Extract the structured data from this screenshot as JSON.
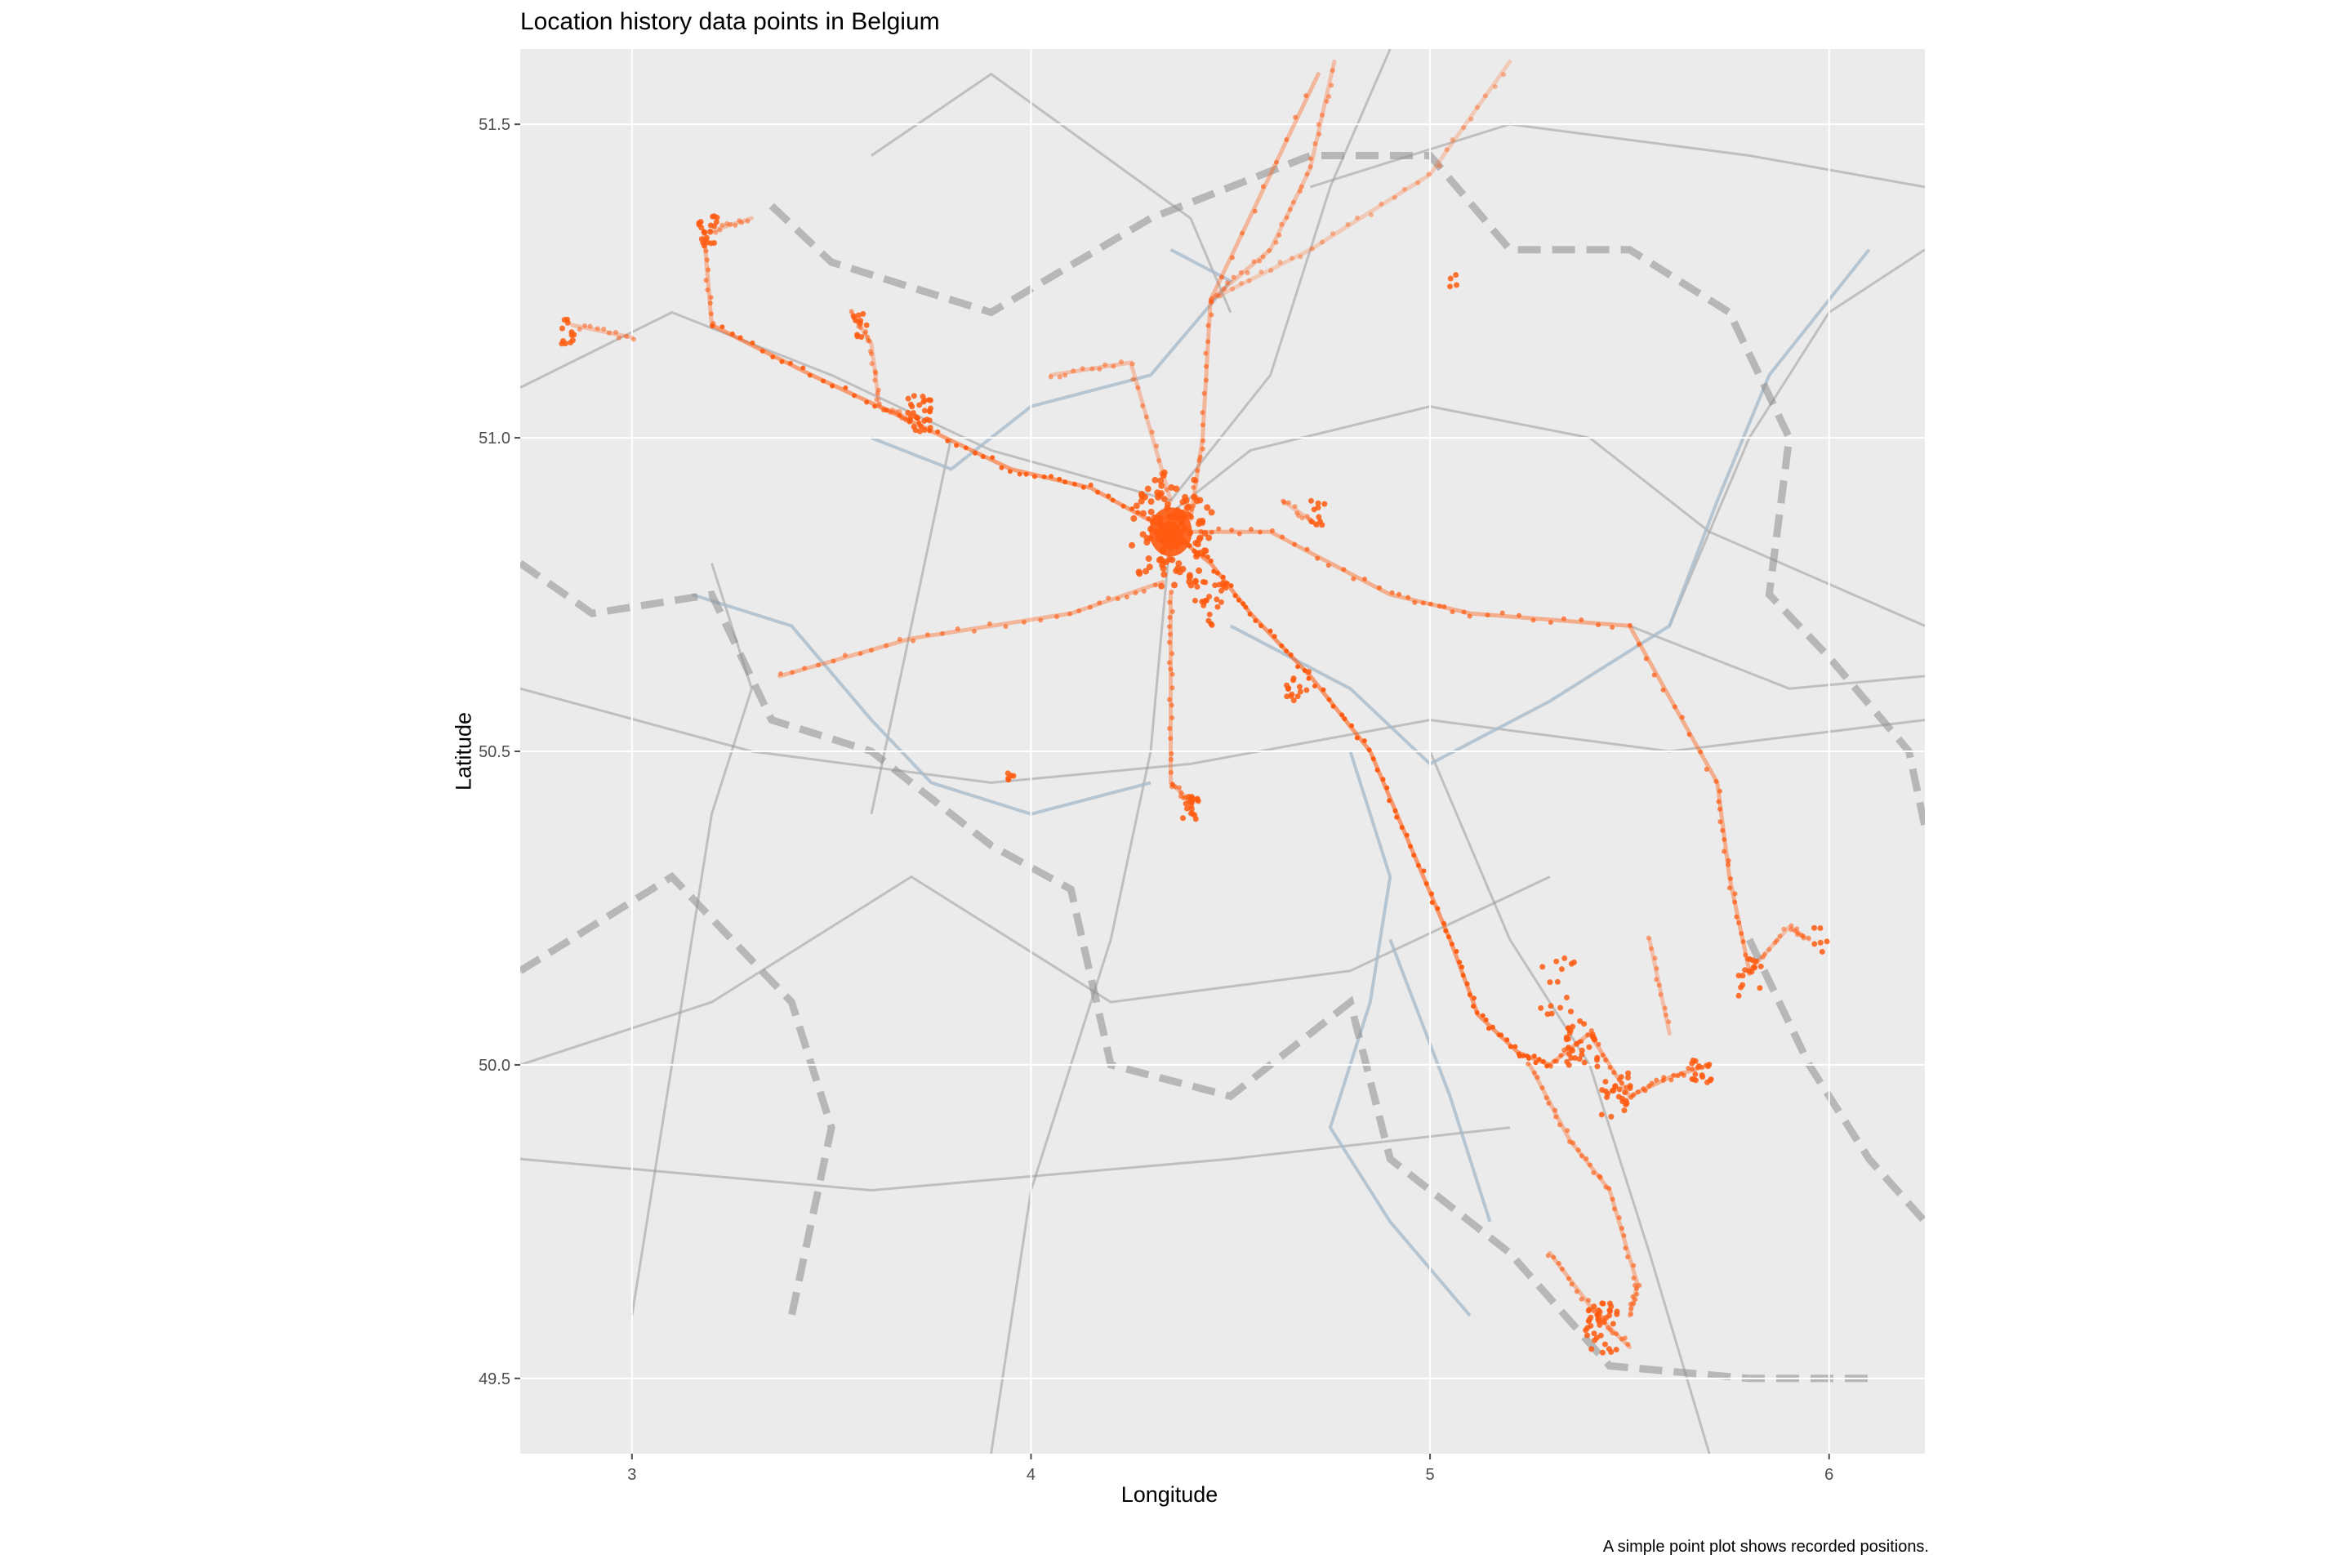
{
  "title": "Location history data points in Belgium",
  "caption": "A simple point plot shows recorded positions.",
  "colors": {
    "panel": "#ebebeb",
    "grid": "#ffffff",
    "points": "#ff5a0f",
    "roads": "#9a9a9a",
    "rivers": "#a9bccc",
    "borders": "#8c8c8c"
  },
  "chart_data": {
    "type": "scatter",
    "title": "Location history data points in Belgium",
    "xlabel": "Longitude",
    "ylabel": "Latitude",
    "xlim": [
      2.72,
      6.24
    ],
    "ylim": [
      49.38,
      51.62
    ],
    "xticks": [
      "3",
      "4",
      "5",
      "6"
    ],
    "xtick_values": [
      3,
      4,
      5,
      6
    ],
    "yticks": [
      "49.5",
      "50.0",
      "50.5",
      "51.0",
      "51.5"
    ],
    "ytick_values": [
      49.5,
      50.0,
      50.5,
      51.0,
      51.5
    ],
    "grid": true,
    "background": "map tiles",
    "hotspot": {
      "lon": 4.35,
      "lat": 50.85
    },
    "tracks": [
      {
        "opacity": 0.9,
        "points": [
          [
            3.2,
            51.18
          ],
          [
            3.45,
            51.1
          ],
          [
            3.72,
            51.02
          ],
          [
            3.95,
            50.95
          ],
          [
            4.15,
            50.92
          ],
          [
            4.35,
            50.85
          ]
        ]
      },
      {
        "opacity": 0.95,
        "points": [
          [
            4.35,
            50.85
          ],
          [
            4.45,
            50.8
          ],
          [
            4.55,
            50.72
          ],
          [
            4.7,
            50.62
          ],
          [
            4.85,
            50.5
          ],
          [
            4.95,
            50.35
          ],
          [
            5.05,
            50.2
          ],
          [
            5.12,
            50.08
          ],
          [
            5.22,
            50.02
          ],
          [
            5.3,
            50.0
          ]
        ]
      },
      {
        "opacity": 0.7,
        "points": [
          [
            4.35,
            50.85
          ],
          [
            4.6,
            50.85
          ],
          [
            4.9,
            50.75
          ],
          [
            5.1,
            50.72
          ],
          [
            5.5,
            50.7
          ],
          [
            5.72,
            50.45
          ],
          [
            5.75,
            50.3
          ],
          [
            5.8,
            50.15
          ]
        ]
      },
      {
        "opacity": 0.6,
        "points": [
          [
            3.37,
            50.62
          ],
          [
            3.7,
            50.68
          ],
          [
            4.1,
            50.72
          ],
          [
            4.33,
            50.77
          ]
        ]
      },
      {
        "opacity": 0.6,
        "points": [
          [
            4.4,
            50.87
          ],
          [
            4.43,
            51.0
          ],
          [
            4.45,
            51.22
          ],
          [
            4.72,
            51.58
          ]
        ]
      },
      {
        "opacity": 0.5,
        "points": [
          [
            4.45,
            51.22
          ],
          [
            4.6,
            51.3
          ],
          [
            4.7,
            51.43
          ],
          [
            4.76,
            51.6
          ]
        ]
      },
      {
        "opacity": 0.4,
        "points": [
          [
            4.45,
            51.22
          ],
          [
            4.7,
            51.3
          ],
          [
            5.0,
            51.42
          ],
          [
            5.2,
            51.6
          ]
        ]
      },
      {
        "opacity": 0.6,
        "points": [
          [
            3.2,
            51.18
          ],
          [
            3.18,
            51.33
          ]
        ]
      },
      {
        "opacity": 0.5,
        "points": [
          [
            3.0,
            51.16
          ],
          [
            2.85,
            51.18
          ]
        ]
      },
      {
        "opacity": 0.5,
        "points": [
          [
            3.2,
            51.33
          ],
          [
            3.3,
            51.35
          ]
        ]
      },
      {
        "opacity": 0.5,
        "points": [
          [
            3.55,
            51.2
          ],
          [
            3.6,
            51.15
          ],
          [
            3.62,
            51.05
          ],
          [
            3.7,
            51.03
          ]
        ]
      },
      {
        "opacity": 0.5,
        "points": [
          [
            4.05,
            51.1
          ],
          [
            4.25,
            51.12
          ],
          [
            4.35,
            50.9
          ]
        ]
      },
      {
        "opacity": 0.6,
        "points": [
          [
            4.35,
            50.75
          ],
          [
            4.35,
            50.62
          ],
          [
            4.35,
            50.45
          ],
          [
            4.4,
            50.42
          ]
        ]
      },
      {
        "opacity": 0.7,
        "points": [
          [
            5.3,
            50.0
          ],
          [
            5.4,
            50.05
          ],
          [
            5.5,
            49.95
          ],
          [
            5.6,
            49.98
          ],
          [
            5.7,
            50.0
          ]
        ]
      },
      {
        "opacity": 0.6,
        "points": [
          [
            5.25,
            50.0
          ],
          [
            5.35,
            49.88
          ],
          [
            5.45,
            49.8
          ],
          [
            5.52,
            49.65
          ],
          [
            5.5,
            49.6
          ]
        ]
      },
      {
        "opacity": 0.6,
        "points": [
          [
            5.3,
            49.7
          ],
          [
            5.42,
            49.6
          ],
          [
            5.5,
            49.55
          ]
        ]
      },
      {
        "opacity": 0.5,
        "points": [
          [
            5.55,
            50.2
          ],
          [
            5.6,
            50.05
          ]
        ]
      },
      {
        "opacity": 0.5,
        "points": [
          [
            5.8,
            50.15
          ],
          [
            5.9,
            50.22
          ],
          [
            5.95,
            50.2
          ]
        ]
      },
      {
        "opacity": 0.5,
        "points": [
          [
            4.63,
            50.9
          ],
          [
            4.72,
            50.86
          ]
        ]
      }
    ],
    "clusters": [
      {
        "lon": 3.19,
        "lat": 51.33,
        "n": 20,
        "spread": 0.025
      },
      {
        "lon": 2.84,
        "lat": 51.17,
        "n": 12,
        "spread": 0.02
      },
      {
        "lon": 3.72,
        "lat": 51.04,
        "n": 30,
        "spread": 0.03
      },
      {
        "lon": 3.57,
        "lat": 51.18,
        "n": 10,
        "spread": 0.02
      },
      {
        "lon": 4.72,
        "lat": 50.88,
        "n": 10,
        "spread": 0.02
      },
      {
        "lon": 4.67,
        "lat": 50.6,
        "n": 14,
        "spread": 0.03
      },
      {
        "lon": 4.4,
        "lat": 50.41,
        "n": 18,
        "spread": 0.02
      },
      {
        "lon": 3.95,
        "lat": 50.46,
        "n": 5,
        "spread": 0.01
      },
      {
        "lon": 4.45,
        "lat": 50.74,
        "n": 25,
        "spread": 0.04
      },
      {
        "lon": 5.38,
        "lat": 50.03,
        "n": 30,
        "spread": 0.04
      },
      {
        "lon": 5.47,
        "lat": 49.95,
        "n": 25,
        "spread": 0.04
      },
      {
        "lon": 5.68,
        "lat": 50.0,
        "n": 15,
        "spread": 0.03
      },
      {
        "lon": 5.43,
        "lat": 49.58,
        "n": 40,
        "spread": 0.04
      },
      {
        "lon": 5.8,
        "lat": 50.14,
        "n": 15,
        "spread": 0.03
      },
      {
        "lon": 5.98,
        "lat": 50.2,
        "n": 6,
        "spread": 0.02
      },
      {
        "lon": 5.06,
        "lat": 51.25,
        "n": 4,
        "spread": 0.01
      },
      {
        "lon": 5.32,
        "lat": 50.12,
        "n": 15,
        "spread": 0.05
      }
    ]
  }
}
